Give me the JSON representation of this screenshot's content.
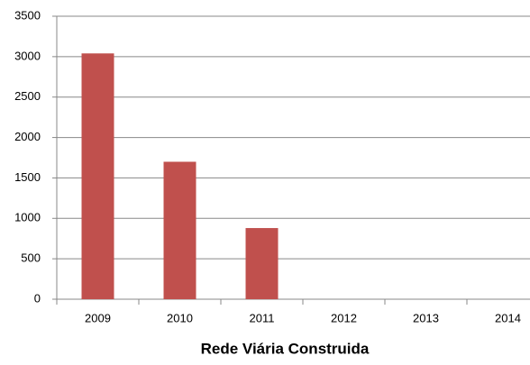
{
  "chart_data": {
    "type": "bar",
    "x_label": "Rede Viária Construida",
    "categories": [
      "2009",
      "2010",
      "2011",
      "2012",
      "2013",
      "2014"
    ],
    "values": [
      3040,
      1700,
      880,
      0,
      0,
      0
    ],
    "color": "#c0504d",
    "ylim": [
      0,
      3500
    ],
    "yticks": [
      0,
      500,
      1000,
      1500,
      2000,
      2500,
      3000,
      3500
    ],
    "grid": true
  }
}
